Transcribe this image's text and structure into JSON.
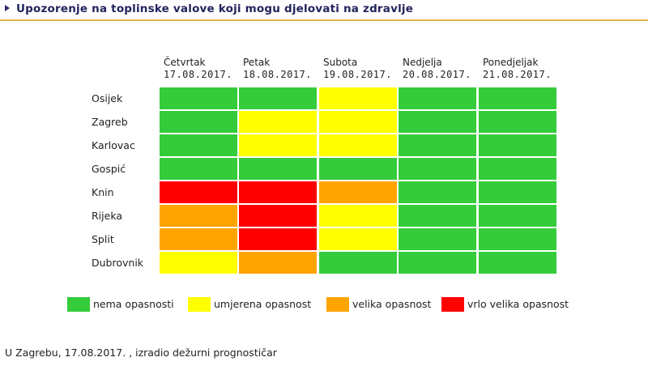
{
  "header": {
    "title": "Upozorenje na toplinske valove koji mogu djelovati na zdravlje"
  },
  "days": [
    {
      "name": "Četvrtak",
      "date": "17.08.2017."
    },
    {
      "name": "Petak",
      "date": "18.08.2017."
    },
    {
      "name": "Subota",
      "date": "19.08.2017."
    },
    {
      "name": "Nedjelja",
      "date": "20.08.2017."
    },
    {
      "name": "Ponedjeljak",
      "date": "21.08.2017."
    }
  ],
  "colors": {
    "nema": "#34cc3a",
    "umjerena": "#ffff00",
    "velika": "#ffa400",
    "vrlo": "#ff0000"
  },
  "cities": [
    {
      "name": "Osijek",
      "levels": [
        "nema",
        "nema",
        "umjerena",
        "nema",
        "nema"
      ]
    },
    {
      "name": "Zagreb",
      "levels": [
        "nema",
        "umjerena",
        "umjerena",
        "nema",
        "nema"
      ]
    },
    {
      "name": "Karlovac",
      "levels": [
        "nema",
        "umjerena",
        "umjerena",
        "nema",
        "nema"
      ]
    },
    {
      "name": "Gospić",
      "levels": [
        "nema",
        "nema",
        "nema",
        "nema",
        "nema"
      ]
    },
    {
      "name": "Knin",
      "levels": [
        "vrlo",
        "vrlo",
        "velika",
        "nema",
        "nema"
      ]
    },
    {
      "name": "Rijeka",
      "levels": [
        "velika",
        "vrlo",
        "umjerena",
        "nema",
        "nema"
      ]
    },
    {
      "name": "Split",
      "levels": [
        "velika",
        "vrlo",
        "umjerena",
        "nema",
        "nema"
      ]
    },
    {
      "name": "Dubrovnik",
      "levels": [
        "umjerena",
        "velika",
        "nema",
        "nema",
        "nema"
      ]
    }
  ],
  "legend": [
    {
      "key": "nema",
      "label": "nema opasnosti"
    },
    {
      "key": "umjerena",
      "label": "umjerena opasnost"
    },
    {
      "key": "velika",
      "label": "velika opasnost"
    },
    {
      "key": "vrlo",
      "label": "vrlo velika opasnost"
    }
  ],
  "footer": {
    "text": "U Zagrebu, 17.08.2017. , izradio dežurni prognostičar"
  }
}
